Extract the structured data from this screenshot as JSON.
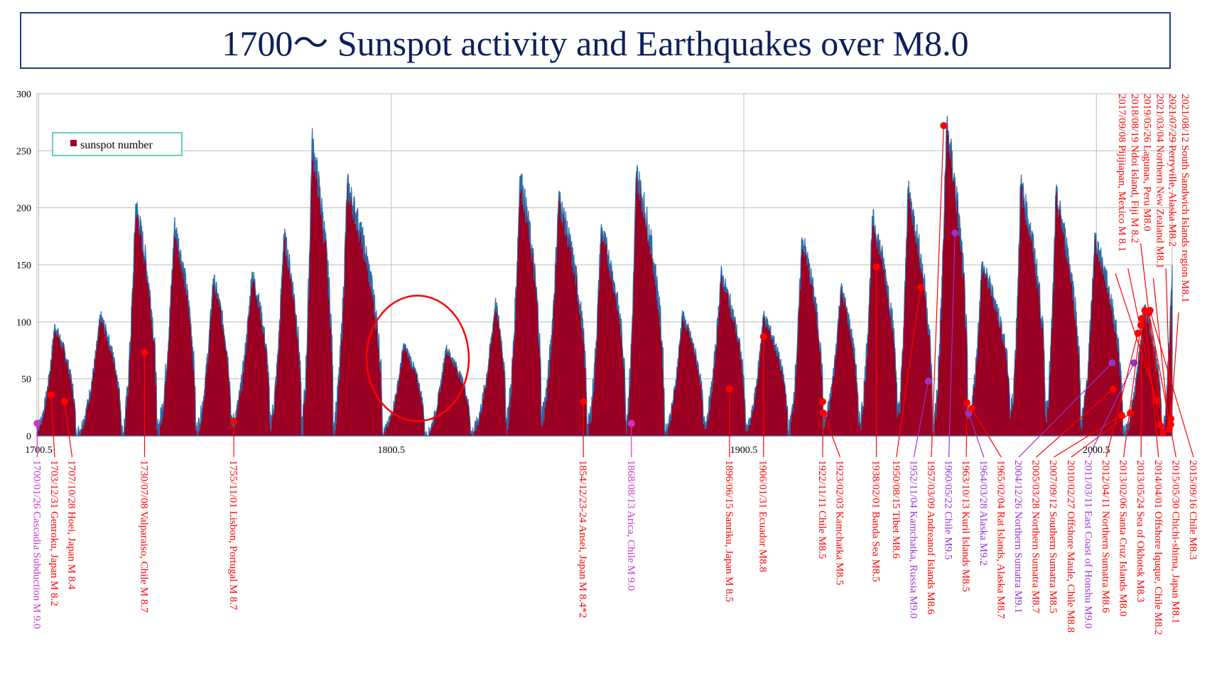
{
  "chart_data": {
    "type": "area",
    "title": "1700～ Sunspot activity and Earthquakes over M8.0",
    "legend": {
      "label": "sunspot number",
      "position": "top-left"
    },
    "colors": {
      "fill": "#9c0022",
      "stroke": "#2d6ca8",
      "red": "#ff0000",
      "purple": "#9933cc",
      "magenta": "#cc33cc",
      "circle": "#ff0000"
    },
    "xlim": [
      1700,
      2022
    ],
    "ylim": [
      0,
      300
    ],
    "yticks": [
      "0",
      "50",
      "100",
      "150",
      "200",
      "250",
      "300"
    ],
    "xticks": [
      {
        "value": 1700.5,
        "label": "1700.5"
      },
      {
        "value": 1800.5,
        "label": "1800.5"
      },
      {
        "value": 1900.5,
        "label": "1900.5"
      },
      {
        "value": 2000.5,
        "label": "2000.5"
      }
    ],
    "grid": true,
    "circle_annotation": {
      "x": 1808,
      "y": 68,
      "rx": 14.5,
      "ry": 55
    },
    "peaks": [
      [
        1700,
        8
      ],
      [
        1705,
        97
      ],
      [
        1711,
        2
      ],
      [
        1718,
        105
      ],
      [
        1724,
        0
      ],
      [
        1728,
        203
      ],
      [
        1734,
        5
      ],
      [
        1739,
        185
      ],
      [
        1745,
        5
      ],
      [
        1750,
        138
      ],
      [
        1755,
        10
      ],
      [
        1761,
        143
      ],
      [
        1766,
        12
      ],
      [
        1770,
        177
      ],
      [
        1775,
        8
      ],
      [
        1778,
        258
      ],
      [
        1784,
        10
      ],
      [
        1788,
        220
      ],
      [
        1798,
        4
      ],
      [
        1804,
        80
      ],
      [
        1810,
        0
      ],
      [
        1816,
        77
      ],
      [
        1823,
        2
      ],
      [
        1830,
        117
      ],
      [
        1833,
        12
      ],
      [
        1837,
        228
      ],
      [
        1843,
        18
      ],
      [
        1848,
        209
      ],
      [
        1856,
        6
      ],
      [
        1860,
        182
      ],
      [
        1867,
        14
      ],
      [
        1870,
        232
      ],
      [
        1878,
        5
      ],
      [
        1883,
        106
      ],
      [
        1889,
        10
      ],
      [
        1894,
        142
      ],
      [
        1901,
        5
      ],
      [
        1906,
        106
      ],
      [
        1913,
        3
      ],
      [
        1917,
        174
      ],
      [
        1923,
        12
      ],
      [
        1928,
        130
      ],
      [
        1933,
        9
      ],
      [
        1937,
        191
      ],
      [
        1944,
        16
      ],
      [
        1947,
        215
      ],
      [
        1954,
        6
      ],
      [
        1958,
        272
      ],
      [
        1964,
        15
      ],
      [
        1968,
        150
      ],
      [
        1976,
        18
      ],
      [
        1979,
        220
      ],
      [
        1986,
        20
      ],
      [
        1989,
        211
      ],
      [
        1996,
        13
      ],
      [
        2000,
        174
      ],
      [
        2008,
        2
      ],
      [
        2014,
        114
      ],
      [
        2019,
        1
      ],
      [
        2022,
        150
      ]
    ],
    "earthquakes": [
      {
        "x": 1700.07,
        "y": 11,
        "label": "1700/01/26 Cascadia Subduction M 9.0",
        "color": "magenta"
      },
      {
        "x": 1703.99,
        "y": 36,
        "label": "1703/12/31 Genroku, Japan M 8.2",
        "color": "red"
      },
      {
        "x": 1707.82,
        "y": 30,
        "label": "1707/10/28 Hoei, Japan M 8.4",
        "color": "red"
      },
      {
        "x": 1730.52,
        "y": 73,
        "label": "1730/07/08 Valparaiso, Chile M 8.7",
        "color": "red"
      },
      {
        "x": 1755.83,
        "y": 13,
        "label": "1755/11/01 Lisbon, Portugal M 8.7",
        "color": "red"
      },
      {
        "x": 1854.98,
        "y": 30,
        "label": "1854/12/23-24 Ansei, Japan M 8.4*2",
        "color": "red"
      },
      {
        "x": 1868.62,
        "y": 11,
        "label": "1868/08/13 Arica, Chile M 9.0",
        "color": "magenta"
      },
      {
        "x": 1896.45,
        "y": 41,
        "label": "1896/06/15 Sanriku, Japan M 8.5",
        "color": "red"
      },
      {
        "x": 1906.08,
        "y": 87,
        "label": "1906/01/31 Ecuador M8.8",
        "color": "red"
      },
      {
        "x": 1922.86,
        "y": 30,
        "label": "1922/11/11 Chile M8.5",
        "color": "red"
      },
      {
        "x": 1923.09,
        "y": 20,
        "label": "1923/02/03 Kamchatka M8.5",
        "color": "red"
      },
      {
        "x": 1938.09,
        "y": 148,
        "label": "1938/02/01 Banda Sea M8.5",
        "color": "red"
      },
      {
        "x": 1950.62,
        "y": 130,
        "label": "1950/08/15 Tibet M8.6",
        "color": "red"
      },
      {
        "x": 1952.84,
        "y": 48,
        "label": "1952/11/04 Kamchatka, Russia M9.0",
        "color": "purple"
      },
      {
        "x": 1957.19,
        "y": 272,
        "label": "1957/03/09 Andreanof Islands M8.6",
        "color": "red"
      },
      {
        "x": 1960.39,
        "y": 178,
        "label": "1960/05/22 Chile M9.5",
        "color": "purple"
      },
      {
        "x": 1963.78,
        "y": 29,
        "label": "1963/10/13 Kuril Islands M8.5",
        "color": "red"
      },
      {
        "x": 1964.24,
        "y": 20,
        "label": "1964/03/28 Alaska M9.2",
        "color": "purple"
      },
      {
        "x": 1965.1,
        "y": 24,
        "label": "1965/02/04 Rat Islands, Alaska M8.7",
        "color": "red"
      },
      {
        "x": 2004.98,
        "y": 64,
        "label": "2004/12/26 Northern Sumatra M9.1",
        "color": "purple"
      },
      {
        "x": 2005.24,
        "y": 41,
        "label": "2005/03/28 Northern Sumatra M8.7",
        "color": "red"
      },
      {
        "x": 2007.7,
        "y": 18,
        "label": "2007/09/12 Southern Sumatra M8.5",
        "color": "red"
      },
      {
        "x": 2010.16,
        "y": 20,
        "label": "2010/02/27 Offshore Maule, Chile M8.8",
        "color": "red"
      },
      {
        "x": 2011.19,
        "y": 64,
        "label": "2011/03/11 East Coast of Honshu M9.0",
        "color": "purple"
      },
      {
        "x": 2012.28,
        "y": 90,
        "label": "2012/04/11 Northern Sumatra M8.6",
        "color": "red"
      },
      {
        "x": 2013.1,
        "y": 97,
        "label": "2013/02/06 Santa Cruz Islands M8.0",
        "color": "red"
      },
      {
        "x": 2013.39,
        "y": 103,
        "label": "2013/05/24 Sea of Okhotsk M8.3",
        "color": "red"
      },
      {
        "x": 2014.25,
        "y": 110,
        "label": "2014/04/01 Offshore Iquque, Chile M8.2",
        "color": "red"
      },
      {
        "x": 2015.41,
        "y": 108,
        "label": "2015/05/30 Chichi-shima, Japan M8.1",
        "color": "red"
      },
      {
        "x": 2015.71,
        "y": 110,
        "label": "2015/09/16 Chile M8.3",
        "color": "red"
      },
      {
        "x": 2017.69,
        "y": 31,
        "label": "2017/09/08 Pijijiapan, Mexico M 8.1",
        "color": "red"
      },
      {
        "x": 2018.63,
        "y": 9,
        "label": "2018/08/19 Ndoi Island, Fiji M 8.2",
        "color": "red"
      },
      {
        "x": 2019.4,
        "y": 3,
        "label": "2019/05/26 Lagunas, Peru M8.0",
        "color": "red"
      },
      {
        "x": 2021.17,
        "y": 6,
        "label": "2021/03/04 Northern New Zealand M8.1",
        "color": "red"
      },
      {
        "x": 2021.57,
        "y": 10,
        "label": "2021/07/29 Perryville, Alaska M8.2",
        "color": "red"
      },
      {
        "x": 2021.61,
        "y": 15,
        "label": "2021/08/12 South Sandwich Islands region M8.1",
        "color": "red"
      }
    ]
  }
}
